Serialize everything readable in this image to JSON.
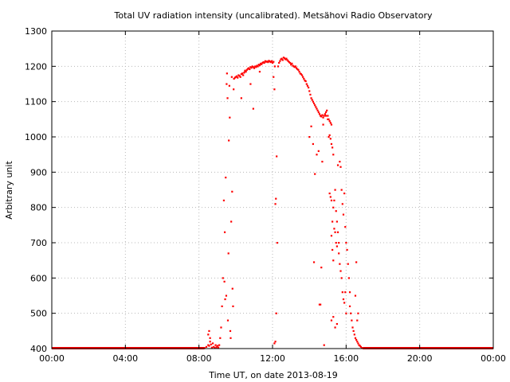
{
  "chart_data": {
    "type": "scatter",
    "title": "Total UV radiation intensity (uncalibrated). Metsähovi Radio Observatory",
    "xlabel": "Time UT, on date 2013-08-19",
    "ylabel": "Arbitrary unit",
    "xlim": [
      0,
      24
    ],
    "ylim": [
      400,
      1300
    ],
    "x_ticks": [
      {
        "value": 0,
        "label": "00:00"
      },
      {
        "value": 4,
        "label": "04:00"
      },
      {
        "value": 8,
        "label": "08:00"
      },
      {
        "value": 12,
        "label": "12:00"
      },
      {
        "value": 16,
        "label": "16:00"
      },
      {
        "value": 20,
        "label": "20:00"
      },
      {
        "value": 24,
        "label": "00:00"
      }
    ],
    "y_ticks": [
      {
        "value": 400,
        "label": "400"
      },
      {
        "value": 500,
        "label": "500"
      },
      {
        "value": 600,
        "label": "600"
      },
      {
        "value": 700,
        "label": "700"
      },
      {
        "value": 800,
        "label": "800"
      },
      {
        "value": 900,
        "label": "900"
      },
      {
        "value": 1000,
        "label": "1000"
      },
      {
        "value": 1100,
        "label": "1100"
      },
      {
        "value": 1200,
        "label": "1200"
      },
      {
        "value": 1300,
        "label": "1300"
      }
    ],
    "grid": true,
    "marker_color": "#ff0000",
    "baseline": {
      "value": 400,
      "x_ranges": [
        [
          0,
          8.3
        ],
        [
          16.9,
          24
        ]
      ]
    },
    "series": [
      {
        "points": [
          [
            8.3,
            402
          ],
          [
            8.4,
            405
          ],
          [
            8.5,
            410
          ],
          [
            8.55,
            408
          ],
          [
            8.6,
            420
          ],
          [
            8.65,
            412
          ],
          [
            8.7,
            403
          ],
          [
            8.75,
            415
          ],
          [
            8.8,
            405
          ],
          [
            8.85,
            402
          ],
          [
            8.9,
            410
          ],
          [
            8.95,
            404
          ],
          [
            9.0,
            408
          ],
          [
            9.05,
            403
          ],
          [
            8.5,
            440
          ],
          [
            8.55,
            450
          ],
          [
            8.6,
            430
          ],
          [
            9.1,
            410
          ],
          [
            9.15,
            430
          ],
          [
            9.2,
            460
          ],
          [
            9.25,
            520
          ],
          [
            9.3,
            600
          ],
          [
            9.35,
            820
          ],
          [
            9.38,
            590
          ],
          [
            9.4,
            730
          ],
          [
            9.42,
            540
          ],
          [
            9.45,
            885
          ],
          [
            9.48,
            550
          ],
          [
            9.5,
            1150
          ],
          [
            9.52,
            1180
          ],
          [
            9.55,
            1110
          ],
          [
            9.57,
            480
          ],
          [
            9.6,
            670
          ],
          [
            9.62,
            990
          ],
          [
            9.65,
            1145
          ],
          [
            9.67,
            1055
          ],
          [
            9.7,
            450
          ],
          [
            9.72,
            430
          ],
          [
            9.75,
            760
          ],
          [
            9.78,
            1170
          ],
          [
            9.8,
            845
          ],
          [
            9.82,
            570
          ],
          [
            9.85,
            520
          ],
          [
            9.88,
            1135
          ],
          [
            9.9,
            1165
          ],
          [
            9.95,
            1168
          ],
          [
            10.0,
            1170
          ],
          [
            10.05,
            1172
          ],
          [
            10.1,
            1168
          ],
          [
            10.15,
            1175
          ],
          [
            10.2,
            1173
          ],
          [
            10.25,
            1170
          ],
          [
            10.3,
            1178
          ],
          [
            10.35,
            1180
          ],
          [
            10.4,
            1175
          ],
          [
            10.45,
            1182
          ],
          [
            10.5,
            1188
          ],
          [
            10.55,
            1185
          ],
          [
            10.6,
            1190
          ],
          [
            10.65,
            1193
          ],
          [
            10.7,
            1195
          ],
          [
            10.75,
            1192
          ],
          [
            10.8,
            1198
          ],
          [
            10.85,
            1196
          ],
          [
            10.9,
            1200
          ],
          [
            10.95,
            1198
          ],
          [
            11.0,
            1195
          ],
          [
            11.05,
            1200
          ],
          [
            11.1,
            1198
          ],
          [
            11.15,
            1202
          ],
          [
            11.2,
            1200
          ],
          [
            11.25,
            1205
          ],
          [
            11.3,
            1203
          ],
          [
            11.35,
            1208
          ],
          [
            11.4,
            1206
          ],
          [
            11.45,
            1210
          ],
          [
            11.5,
            1212
          ],
          [
            11.55,
            1210
          ],
          [
            11.6,
            1215
          ],
          [
            11.65,
            1213
          ],
          [
            11.7,
            1214
          ],
          [
            11.75,
            1212
          ],
          [
            11.8,
            1216
          ],
          [
            11.85,
            1214
          ],
          [
            11.9,
            1212
          ],
          [
            11.95,
            1215
          ],
          [
            12.0,
            1210
          ],
          [
            12.05,
            1213
          ],
          [
            10.3,
            1110
          ],
          [
            10.5,
            1185
          ],
          [
            10.8,
            1150
          ],
          [
            10.95,
            1080
          ],
          [
            11.3,
            1185
          ],
          [
            12.05,
            1170
          ],
          [
            12.1,
            1135
          ],
          [
            12.12,
            1200
          ],
          [
            12.15,
            810
          ],
          [
            12.18,
            825
          ],
          [
            12.22,
            945
          ],
          [
            12.25,
            700
          ],
          [
            12.1,
            415
          ],
          [
            12.15,
            420
          ],
          [
            12.2,
            500
          ],
          [
            12.3,
            1200
          ],
          [
            12.35,
            1210
          ],
          [
            12.4,
            1215
          ],
          [
            12.45,
            1220
          ],
          [
            12.5,
            1222
          ],
          [
            12.55,
            1218
          ],
          [
            12.6,
            1225
          ],
          [
            12.65,
            1223
          ],
          [
            12.7,
            1220
          ],
          [
            12.75,
            1222
          ],
          [
            12.8,
            1218
          ],
          [
            12.85,
            1215
          ],
          [
            12.9,
            1212
          ],
          [
            12.95,
            1210
          ],
          [
            13.0,
            1205
          ],
          [
            13.05,
            1208
          ],
          [
            13.1,
            1202
          ],
          [
            13.15,
            1200
          ],
          [
            13.2,
            1198
          ],
          [
            13.25,
            1200
          ],
          [
            13.3,
            1195
          ],
          [
            13.35,
            1192
          ],
          [
            13.4,
            1190
          ],
          [
            13.45,
            1185
          ],
          [
            13.5,
            1180
          ],
          [
            13.55,
            1178
          ],
          [
            13.6,
            1175
          ],
          [
            13.65,
            1170
          ],
          [
            13.7,
            1165
          ],
          [
            13.75,
            1160
          ],
          [
            13.8,
            1158
          ],
          [
            13.85,
            1150
          ],
          [
            13.9,
            1145
          ],
          [
            13.95,
            1140
          ],
          [
            14.0,
            1130
          ],
          [
            14.05,
            1120
          ],
          [
            14.1,
            1110
          ],
          [
            14.15,
            1105
          ],
          [
            14.2,
            1100
          ],
          [
            14.25,
            1095
          ],
          [
            14.3,
            1090
          ],
          [
            14.35,
            1085
          ],
          [
            14.4,
            1080
          ],
          [
            14.45,
            1075
          ],
          [
            14.5,
            1070
          ],
          [
            14.55,
            1065
          ],
          [
            14.6,
            1060
          ],
          [
            14.65,
            1058
          ],
          [
            14.7,
            1062
          ],
          [
            14.75,
            1055
          ],
          [
            14.8,
            1060
          ],
          [
            14.85,
            1065
          ],
          [
            14.9,
            1070
          ],
          [
            14.95,
            1075
          ],
          [
            15.0,
            1060
          ],
          [
            15.05,
            1050
          ],
          [
            15.1,
            1045
          ],
          [
            15.15,
            1040
          ],
          [
            15.2,
            1035
          ],
          [
            14.0,
            1000
          ],
          [
            14.1,
            1030
          ],
          [
            14.2,
            980
          ],
          [
            14.25,
            645
          ],
          [
            14.3,
            895
          ],
          [
            14.4,
            950
          ],
          [
            14.5,
            960
          ],
          [
            14.55,
            525
          ],
          [
            14.6,
            525
          ],
          [
            14.65,
            630
          ],
          [
            14.7,
            930
          ],
          [
            14.75,
            1035
          ],
          [
            14.8,
            410
          ],
          [
            14.9,
            1060
          ],
          [
            15.0,
            1050
          ],
          [
            15.05,
            1000
          ],
          [
            15.1,
            1005
          ],
          [
            15.15,
            995
          ],
          [
            15.2,
            980
          ],
          [
            15.25,
            970
          ],
          [
            15.3,
            950
          ],
          [
            15.1,
            840
          ],
          [
            15.15,
            830
          ],
          [
            15.2,
            820
          ],
          [
            15.25,
            760
          ],
          [
            15.3,
            800
          ],
          [
            15.35,
            740
          ],
          [
            15.4,
            730
          ],
          [
            15.45,
            700
          ],
          [
            15.5,
            690
          ],
          [
            15.55,
            920
          ],
          [
            15.6,
            670
          ],
          [
            15.65,
            640
          ],
          [
            15.7,
            620
          ],
          [
            15.75,
            600
          ],
          [
            15.8,
            560
          ],
          [
            15.85,
            540
          ],
          [
            15.9,
            530
          ],
          [
            15.95,
            560
          ],
          [
            16.0,
            500
          ],
          [
            15.2,
            720
          ],
          [
            15.25,
            680
          ],
          [
            15.3,
            650
          ],
          [
            15.35,
            820
          ],
          [
            15.4,
            850
          ],
          [
            15.45,
            790
          ],
          [
            15.5,
            760
          ],
          [
            15.55,
            730
          ],
          [
            15.6,
            700
          ],
          [
            15.65,
            930
          ],
          [
            15.7,
            915
          ],
          [
            15.75,
            850
          ],
          [
            15.8,
            810
          ],
          [
            15.85,
            780
          ],
          [
            15.9,
            840
          ],
          [
            15.95,
            745
          ],
          [
            16.0,
            700
          ],
          [
            16.05,
            680
          ],
          [
            16.1,
            640
          ],
          [
            16.15,
            600
          ],
          [
            16.2,
            560
          ],
          [
            15.2,
            480
          ],
          [
            15.3,
            490
          ],
          [
            15.4,
            460
          ],
          [
            15.5,
            470
          ],
          [
            16.2,
            520
          ],
          [
            16.25,
            500
          ],
          [
            16.3,
            480
          ],
          [
            16.35,
            460
          ],
          [
            16.4,
            450
          ],
          [
            16.45,
            440
          ],
          [
            16.5,
            430
          ],
          [
            16.55,
            425
          ],
          [
            16.6,
            420
          ],
          [
            16.65,
            415
          ],
          [
            16.7,
            410
          ],
          [
            16.75,
            408
          ],
          [
            16.8,
            405
          ],
          [
            16.85,
            402
          ],
          [
            16.5,
            550
          ],
          [
            16.55,
            645
          ],
          [
            16.6,
            480
          ],
          [
            16.65,
            500
          ]
        ]
      }
    ]
  }
}
